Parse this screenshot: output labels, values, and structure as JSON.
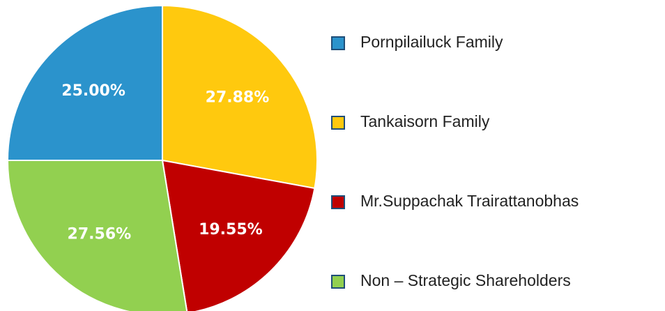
{
  "chart_data": {
    "type": "pie",
    "categories": [
      "Pornpilailuck Family",
      "Tankaisorn Family",
      "Mr.Suppachak Trairattanobhas",
      "Non – Strategic Shareholders"
    ],
    "values": [
      25.0,
      27.88,
      19.55,
      27.56
    ],
    "value_labels": [
      "25.00%",
      "27.88%",
      "19.55%",
      "27.56%"
    ],
    "colors": [
      "#2b93cc",
      "#ffc90e",
      "#c00000",
      "#92d050"
    ]
  }
}
